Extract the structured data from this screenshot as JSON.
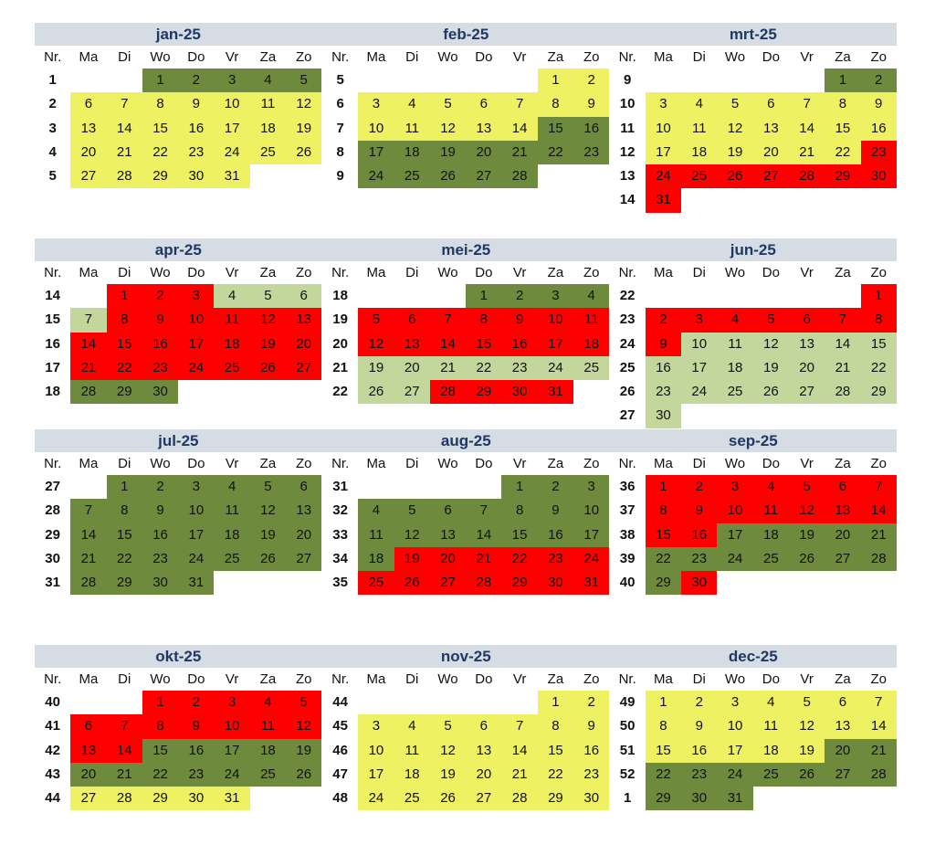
{
  "nr_label": "Nr.",
  "weekdays": [
    "Ma",
    "Di",
    "Wo",
    "Do",
    "Vr",
    "Za",
    "Zo"
  ],
  "colors": {
    "dark": "#6e8b3d",
    "yellow": "#eef162",
    "red": "#ff0000",
    "light": "#c3d69b"
  },
  "months": [
    {
      "title": "jan-25",
      "weeks": [
        [
          1,
          [
            null,
            null,
            1,
            2,
            3,
            4,
            5
          ]
        ],
        [
          2,
          [
            6,
            7,
            8,
            9,
            10,
            11,
            12
          ]
        ],
        [
          3,
          [
            13,
            14,
            15,
            16,
            17,
            18,
            19
          ]
        ],
        [
          4,
          [
            20,
            21,
            22,
            23,
            24,
            25,
            26
          ]
        ],
        [
          5,
          [
            27,
            28,
            29,
            30,
            31
          ]
        ]
      ],
      "colors": [
        [
          1,
          5,
          "dark"
        ],
        [
          6,
          31,
          "yellow"
        ]
      ]
    },
    {
      "title": "feb-25",
      "weeks": [
        [
          5,
          [
            null,
            null,
            null,
            null,
            null,
            1,
            2
          ]
        ],
        [
          6,
          [
            3,
            4,
            5,
            6,
            7,
            8,
            9
          ]
        ],
        [
          7,
          [
            10,
            11,
            12,
            13,
            14,
            15,
            16
          ]
        ],
        [
          8,
          [
            17,
            18,
            19,
            20,
            21,
            22,
            23
          ]
        ],
        [
          9,
          [
            24,
            25,
            26,
            27,
            28
          ]
        ]
      ],
      "colors": [
        [
          1,
          14,
          "yellow"
        ],
        [
          15,
          28,
          "dark"
        ]
      ]
    },
    {
      "title": "mrt-25",
      "weeks": [
        [
          9,
          [
            null,
            null,
            null,
            null,
            null,
            1,
            2
          ]
        ],
        [
          10,
          [
            3,
            4,
            5,
            6,
            7,
            8,
            9
          ]
        ],
        [
          11,
          [
            10,
            11,
            12,
            13,
            14,
            15,
            16
          ]
        ],
        [
          12,
          [
            17,
            18,
            19,
            20,
            21,
            22,
            23
          ]
        ],
        [
          13,
          [
            24,
            25,
            26,
            27,
            28,
            29,
            30
          ]
        ],
        [
          14,
          [
            31
          ]
        ]
      ],
      "colors": [
        [
          1,
          2,
          "dark"
        ],
        [
          3,
          22,
          "yellow"
        ],
        [
          23,
          31,
          "red"
        ]
      ]
    },
    {
      "title": "apr-25",
      "weeks": [
        [
          14,
          [
            null,
            1,
            2,
            3,
            4,
            5,
            6
          ]
        ],
        [
          15,
          [
            7,
            8,
            9,
            10,
            11,
            12,
            13
          ]
        ],
        [
          16,
          [
            14,
            15,
            16,
            17,
            18,
            19,
            20
          ]
        ],
        [
          17,
          [
            21,
            22,
            23,
            24,
            25,
            26,
            27
          ]
        ],
        [
          18,
          [
            28,
            29,
            30
          ]
        ]
      ],
      "colors": [
        [
          1,
          3,
          "red"
        ],
        [
          4,
          7,
          "light"
        ],
        [
          8,
          27,
          "red"
        ],
        [
          28,
          30,
          "dark"
        ]
      ]
    },
    {
      "title": "mei-25",
      "weeks": [
        [
          18,
          [
            null,
            null,
            null,
            1,
            2,
            3,
            4
          ]
        ],
        [
          19,
          [
            5,
            6,
            7,
            8,
            9,
            10,
            11
          ]
        ],
        [
          20,
          [
            12,
            13,
            14,
            15,
            16,
            17,
            18
          ]
        ],
        [
          21,
          [
            19,
            20,
            21,
            22,
            23,
            24,
            25
          ]
        ],
        [
          22,
          [
            26,
            27,
            28,
            29,
            30,
            31
          ]
        ]
      ],
      "colors": [
        [
          1,
          4,
          "dark"
        ],
        [
          5,
          18,
          "red"
        ],
        [
          19,
          27,
          "light"
        ],
        [
          28,
          31,
          "red"
        ]
      ]
    },
    {
      "title": "jun-25",
      "weeks": [
        [
          22,
          [
            null,
            null,
            null,
            null,
            null,
            null,
            1
          ]
        ],
        [
          23,
          [
            2,
            3,
            4,
            5,
            6,
            7,
            8
          ]
        ],
        [
          24,
          [
            9,
            10,
            11,
            12,
            13,
            14,
            15
          ]
        ],
        [
          25,
          [
            16,
            17,
            18,
            19,
            20,
            21,
            22
          ]
        ],
        [
          26,
          [
            23,
            24,
            25,
            26,
            27,
            28,
            29
          ]
        ],
        [
          27,
          [
            30
          ]
        ]
      ],
      "colors": [
        [
          1,
          9,
          "red"
        ],
        [
          10,
          30,
          "light"
        ]
      ]
    },
    {
      "title": "jul-25",
      "weeks": [
        [
          27,
          [
            null,
            1,
            2,
            3,
            4,
            5,
            6
          ]
        ],
        [
          28,
          [
            7,
            8,
            9,
            10,
            11,
            12,
            13
          ]
        ],
        [
          29,
          [
            14,
            15,
            16,
            17,
            18,
            19,
            20
          ]
        ],
        [
          30,
          [
            21,
            22,
            23,
            24,
            25,
            26,
            27
          ]
        ],
        [
          31,
          [
            28,
            29,
            30,
            31
          ]
        ]
      ],
      "colors": [
        [
          1,
          31,
          "dark"
        ]
      ]
    },
    {
      "title": "aug-25",
      "weeks": [
        [
          31,
          [
            null,
            null,
            null,
            null,
            1,
            2,
            3
          ]
        ],
        [
          32,
          [
            4,
            5,
            6,
            7,
            8,
            9,
            10
          ]
        ],
        [
          33,
          [
            11,
            12,
            13,
            14,
            15,
            16,
            17
          ]
        ],
        [
          34,
          [
            18,
            19,
            20,
            21,
            22,
            23,
            24
          ]
        ],
        [
          35,
          [
            25,
            26,
            27,
            28,
            29,
            30,
            31
          ]
        ]
      ],
      "colors": [
        [
          1,
          18,
          "dark"
        ],
        [
          19,
          31,
          "red"
        ]
      ]
    },
    {
      "title": "sep-25",
      "weeks": [
        [
          36,
          [
            1,
            2,
            3,
            4,
            5,
            6,
            7
          ]
        ],
        [
          37,
          [
            8,
            9,
            10,
            11,
            12,
            13,
            14
          ]
        ],
        [
          38,
          [
            15,
            16,
            17,
            18,
            19,
            20,
            21
          ]
        ],
        [
          39,
          [
            22,
            23,
            24,
            25,
            26,
            27,
            28
          ]
        ],
        [
          40,
          [
            29,
            30
          ]
        ]
      ],
      "colors": [
        [
          1,
          16,
          "red"
        ],
        [
          17,
          29,
          "dark"
        ],
        [
          30,
          30,
          "red"
        ]
      ]
    },
    {
      "title": "okt-25",
      "weeks": [
        [
          40,
          [
            null,
            null,
            1,
            2,
            3,
            4,
            5
          ]
        ],
        [
          41,
          [
            6,
            7,
            8,
            9,
            10,
            11,
            12
          ]
        ],
        [
          42,
          [
            13,
            14,
            15,
            16,
            17,
            18,
            19
          ]
        ],
        [
          43,
          [
            20,
            21,
            22,
            23,
            24,
            25,
            26
          ]
        ],
        [
          44,
          [
            27,
            28,
            29,
            30,
            31
          ]
        ]
      ],
      "colors": [
        [
          1,
          14,
          "red"
        ],
        [
          15,
          26,
          "dark"
        ],
        [
          27,
          31,
          "yellow"
        ]
      ]
    },
    {
      "title": "nov-25",
      "weeks": [
        [
          44,
          [
            null,
            null,
            null,
            null,
            null,
            1,
            2
          ]
        ],
        [
          45,
          [
            3,
            4,
            5,
            6,
            7,
            8,
            9
          ]
        ],
        [
          46,
          [
            10,
            11,
            12,
            13,
            14,
            15,
            16
          ]
        ],
        [
          47,
          [
            17,
            18,
            19,
            20,
            21,
            22,
            23
          ]
        ],
        [
          48,
          [
            24,
            25,
            26,
            27,
            28,
            29,
            30
          ]
        ]
      ],
      "colors": [
        [
          1,
          30,
          "yellow"
        ]
      ]
    },
    {
      "title": "dec-25",
      "weeks": [
        [
          49,
          [
            1,
            2,
            3,
            4,
            5,
            6,
            7
          ]
        ],
        [
          50,
          [
            8,
            9,
            10,
            11,
            12,
            13,
            14
          ]
        ],
        [
          51,
          [
            15,
            16,
            17,
            18,
            19,
            20,
            21
          ]
        ],
        [
          52,
          [
            22,
            23,
            24,
            25,
            26,
            27,
            28
          ]
        ],
        [
          1,
          [
            29,
            30,
            31
          ]
        ]
      ],
      "colors": [
        [
          1,
          19,
          "yellow"
        ],
        [
          20,
          31,
          "dark"
        ]
      ]
    }
  ]
}
